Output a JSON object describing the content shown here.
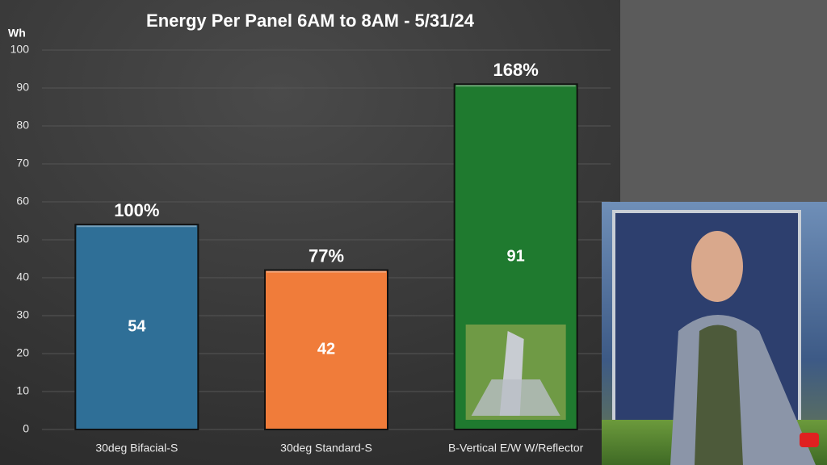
{
  "chart_data": {
    "type": "bar",
    "title": "Energy Per Panel 6AM to 8AM - 5/31/24",
    "y_label": "Wh",
    "categories": [
      "30deg Bifacial-S",
      "30deg Standard-S",
      "B-Vertical E/W W/Reflector"
    ],
    "values": [
      54,
      42,
      91
    ],
    "colors": [
      "#2f6f97",
      "#f07c3a",
      "#1f7a2f"
    ],
    "annotations": [
      "100%",
      "77%",
      "168%"
    ],
    "ylim": [
      0,
      100
    ],
    "yticks": [
      0,
      10,
      20,
      30,
      40,
      50,
      60,
      70,
      80,
      90,
      100
    ],
    "grid": true
  }
}
